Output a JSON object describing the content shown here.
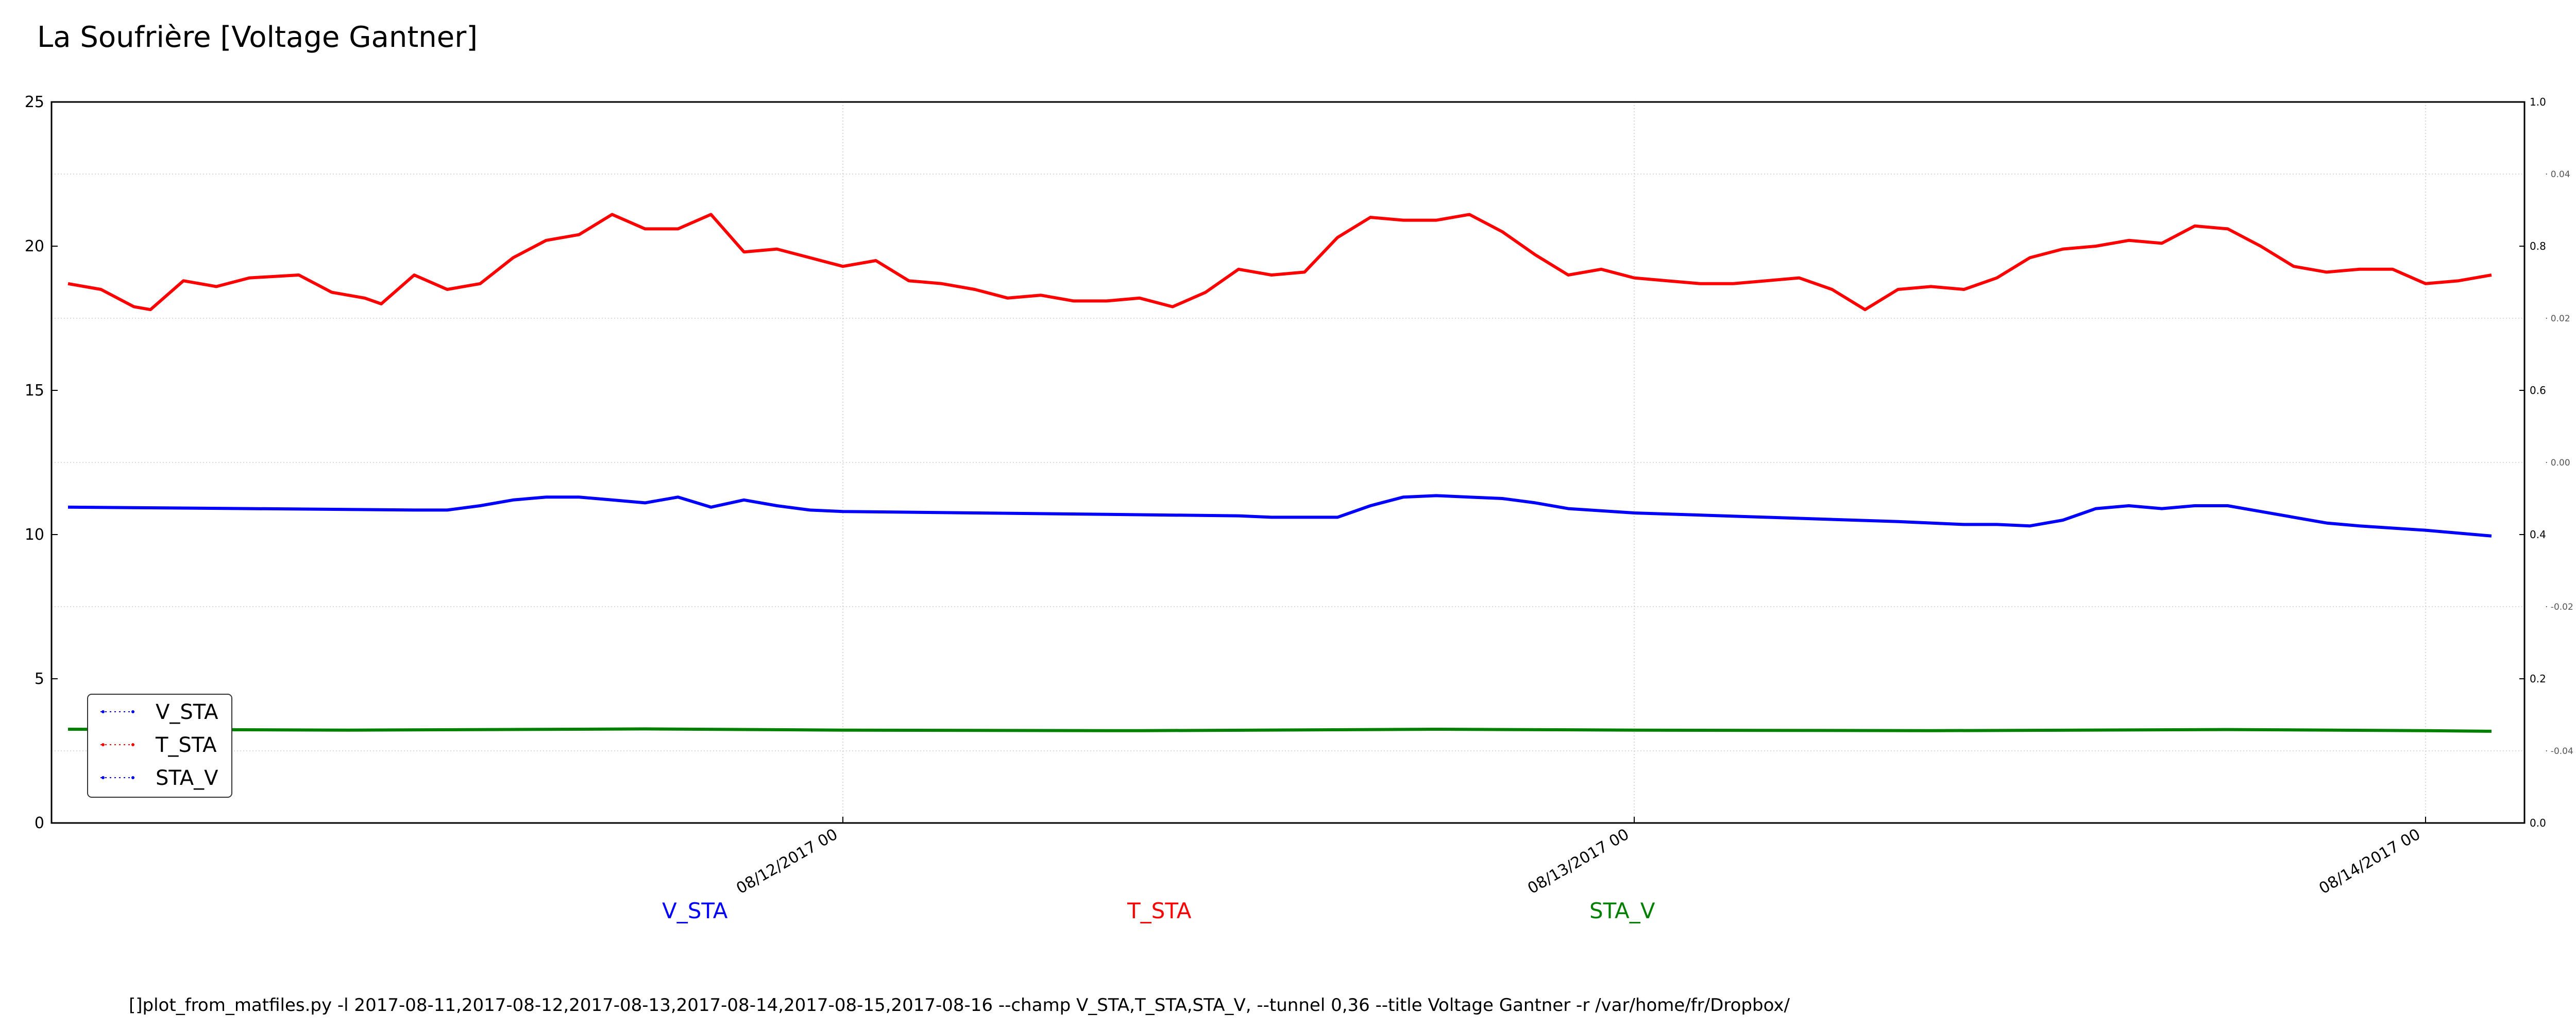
{
  "title": "La Soufrière [Voltage Gantner]",
  "footer_command": "[]plot_from_matfiles.py -l 2017-08-11,2017-08-12,2017-08-13,2017-08-14,2017-08-15,2017-08-16 --champ V_STA,T_STA,STA_V, --tunnel 0,36 --title Voltage Gantner -r /var/home/fr/Dropbox/",
  "series_labels": [
    {
      "name": "V_STA",
      "color": "#0000ff"
    },
    {
      "name": "T_STA",
      "color": "#ff0000"
    },
    {
      "name": "STA_V",
      "color": "#008000"
    }
  ],
  "chart_data": {
    "type": "line",
    "title": "La Soufrière [Voltage Gantner]",
    "x_axis": {
      "type": "date",
      "range": [
        "2017-08-11 00:00",
        "2017-08-14 03:00"
      ],
      "ticks": [
        "2017-08-12 00:00",
        "2017-08-13 00:00",
        "2017-08-14 00:00"
      ],
      "tick_labels": [
        "08/12/2017 00",
        "08/13/2017 00",
        "08/14/2017 00"
      ]
    },
    "y_axis_left": {
      "range": [
        0,
        25
      ],
      "ticks": [
        0,
        5,
        10,
        15,
        20,
        25
      ]
    },
    "y_axis_right_a": {
      "range": [
        0.0,
        1.0
      ],
      "ticks": [
        "0.0",
        "0.2",
        "0.4",
        "0.6",
        "0.8",
        "1.0"
      ]
    },
    "y_axis_right_b": {
      "ticks": [
        "-0.04",
        "-0.02",
        "0.00",
        "0.02",
        "0.04"
      ],
      "tick_values": [
        -0.04,
        -0.02,
        0.0,
        0.02,
        0.04
      ]
    },
    "grid": true,
    "legend": {
      "placement": "lower-left",
      "entries": [
        "V_STA",
        "T_STA",
        "STA_V"
      ]
    },
    "series": [
      {
        "name": "T_STA",
        "color": "#ff0000",
        "x": [
          "2017-08-11 00:30",
          "2017-08-11 01:30",
          "2017-08-11 02:30",
          "2017-08-11 03:00",
          "2017-08-11 04:00",
          "2017-08-11 05:00",
          "2017-08-11 06:00",
          "2017-08-11 07:30",
          "2017-08-11 08:30",
          "2017-08-11 09:30",
          "2017-08-11 10:00",
          "2017-08-11 11:00",
          "2017-08-11 12:00",
          "2017-08-11 13:00",
          "2017-08-11 14:00",
          "2017-08-11 15:00",
          "2017-08-11 16:00",
          "2017-08-11 17:00",
          "2017-08-11 18:00",
          "2017-08-11 19:00",
          "2017-08-11 20:00",
          "2017-08-11 21:00",
          "2017-08-11 22:00",
          "2017-08-11 23:00",
          "2017-08-12 00:00",
          "2017-08-12 01:00",
          "2017-08-12 02:00",
          "2017-08-12 03:00",
          "2017-08-12 04:00",
          "2017-08-12 05:00",
          "2017-08-12 06:00",
          "2017-08-12 07:00",
          "2017-08-12 08:00",
          "2017-08-12 09:00",
          "2017-08-12 10:00",
          "2017-08-12 11:00",
          "2017-08-12 12:00",
          "2017-08-12 13:00",
          "2017-08-12 14:00",
          "2017-08-12 15:00",
          "2017-08-12 16:00",
          "2017-08-12 17:00",
          "2017-08-12 18:00",
          "2017-08-12 19:00",
          "2017-08-12 20:00",
          "2017-08-12 21:00",
          "2017-08-12 22:00",
          "2017-08-12 23:00",
          "2017-08-13 00:00",
          "2017-08-13 01:00",
          "2017-08-13 02:00",
          "2017-08-13 03:00",
          "2017-08-13 04:00",
          "2017-08-13 05:00",
          "2017-08-13 06:00",
          "2017-08-13 07:00",
          "2017-08-13 08:00",
          "2017-08-13 09:00",
          "2017-08-13 10:00",
          "2017-08-13 11:00",
          "2017-08-13 12:00",
          "2017-08-13 13:00",
          "2017-08-13 14:00",
          "2017-08-13 15:00",
          "2017-08-13 16:00",
          "2017-08-13 17:00",
          "2017-08-13 18:00",
          "2017-08-13 19:00",
          "2017-08-13 20:00",
          "2017-08-13 21:00",
          "2017-08-13 22:00",
          "2017-08-13 23:00",
          "2017-08-14 00:00",
          "2017-08-14 01:00",
          "2017-08-14 02:00"
        ],
        "values": [
          18.7,
          18.5,
          17.9,
          17.8,
          18.8,
          18.6,
          18.9,
          19.0,
          18.4,
          18.2,
          18.0,
          19.0,
          18.5,
          18.7,
          19.6,
          20.2,
          20.4,
          21.1,
          20.6,
          20.6,
          21.1,
          19.8,
          19.9,
          19.6,
          19.3,
          19.5,
          18.8,
          18.7,
          18.5,
          18.2,
          18.3,
          18.1,
          18.1,
          18.2,
          17.9,
          18.4,
          19.2,
          19.0,
          19.1,
          20.3,
          21.0,
          20.9,
          20.9,
          21.1,
          20.5,
          19.7,
          19.0,
          19.2,
          18.9,
          18.8,
          18.7,
          18.7,
          18.8,
          18.9,
          18.5,
          17.8,
          18.5,
          18.6,
          18.5,
          18.9,
          19.6,
          19.9,
          20.0,
          20.2,
          20.1,
          20.7,
          20.6,
          20.0,
          19.3,
          19.1,
          19.2,
          19.2,
          18.7,
          18.8,
          19.0
        ]
      },
      {
        "name": "V_STA",
        "color": "#0000ff",
        "x": [
          "2017-08-11 00:30",
          "2017-08-11 06:00",
          "2017-08-11 11:00",
          "2017-08-11 12:00",
          "2017-08-11 13:00",
          "2017-08-11 14:00",
          "2017-08-11 15:00",
          "2017-08-11 16:00",
          "2017-08-11 17:00",
          "2017-08-11 18:00",
          "2017-08-11 19:00",
          "2017-08-11 20:00",
          "2017-08-11 21:00",
          "2017-08-11 22:00",
          "2017-08-11 23:00",
          "2017-08-12 00:00",
          "2017-08-12 04:00",
          "2017-08-12 08:00",
          "2017-08-12 12:00",
          "2017-08-12 13:00",
          "2017-08-12 14:00",
          "2017-08-12 15:00",
          "2017-08-12 16:00",
          "2017-08-12 17:00",
          "2017-08-12 18:00",
          "2017-08-12 19:00",
          "2017-08-12 20:00",
          "2017-08-12 21:00",
          "2017-08-12 22:00",
          "2017-08-13 00:00",
          "2017-08-13 04:00",
          "2017-08-13 08:00",
          "2017-08-13 10:00",
          "2017-08-13 11:00",
          "2017-08-13 12:00",
          "2017-08-13 13:00",
          "2017-08-13 14:00",
          "2017-08-13 15:00",
          "2017-08-13 16:00",
          "2017-08-13 17:00",
          "2017-08-13 18:00",
          "2017-08-13 19:00",
          "2017-08-13 20:00",
          "2017-08-13 21:00",
          "2017-08-13 22:00",
          "2017-08-14 00:00",
          "2017-08-14 02:00"
        ],
        "values": [
          10.95,
          10.9,
          10.85,
          10.85,
          11.0,
          11.2,
          11.3,
          11.3,
          11.2,
          11.1,
          11.3,
          10.95,
          11.2,
          11.0,
          10.85,
          10.8,
          10.75,
          10.7,
          10.65,
          10.6,
          10.6,
          10.6,
          11.0,
          11.3,
          11.35,
          11.3,
          11.25,
          11.1,
          10.9,
          10.75,
          10.6,
          10.45,
          10.35,
          10.35,
          10.3,
          10.5,
          10.9,
          11.0,
          10.9,
          11.0,
          11.0,
          10.8,
          10.6,
          10.4,
          10.3,
          10.15,
          9.95
        ]
      },
      {
        "name": "STA_V",
        "color": "#008000",
        "x": [
          "2017-08-11 00:30",
          "2017-08-11 09:00",
          "2017-08-11 18:00",
          "2017-08-12 00:00",
          "2017-08-12 09:00",
          "2017-08-12 18:00",
          "2017-08-13 00:00",
          "2017-08-13 09:00",
          "2017-08-13 18:00",
          "2017-08-14 00:00",
          "2017-08-14 02:00"
        ],
        "values": [
          3.25,
          3.22,
          3.26,
          3.22,
          3.2,
          3.25,
          3.22,
          3.2,
          3.24,
          3.2,
          3.18
        ]
      }
    ]
  }
}
